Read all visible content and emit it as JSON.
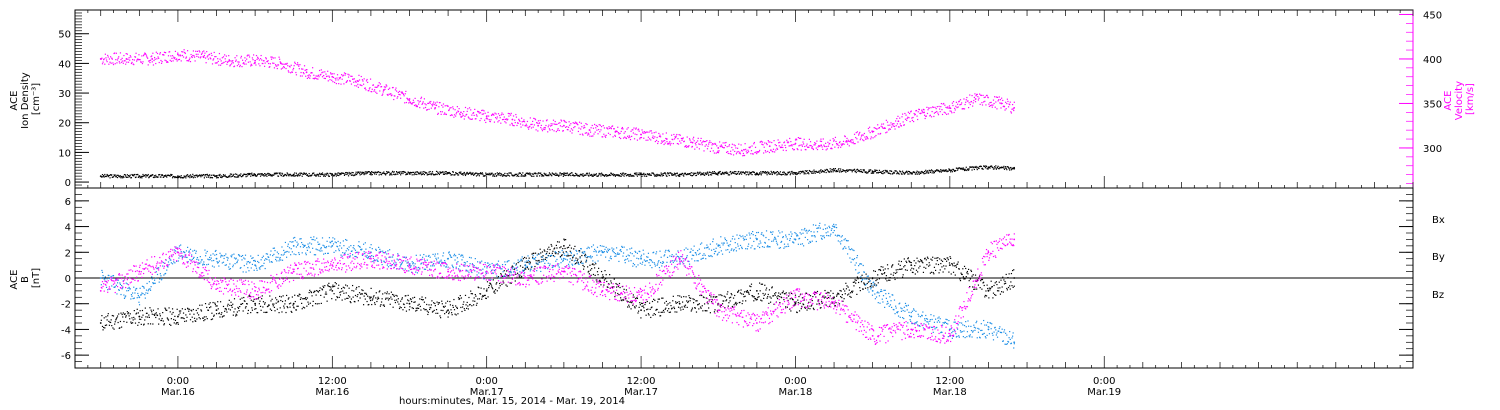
{
  "chart_data": [
    {
      "type": "scatter",
      "ylabel_left": [
        "ACE",
        "Ion Density",
        "[cm⁻³]"
      ],
      "ylabel_right": [
        "ACE",
        "Velocity",
        "[km/s]"
      ],
      "y_left_ticks": [
        0,
        10,
        20,
        30,
        40,
        50
      ],
      "y_left_lim": [
        -2,
        58
      ],
      "y_right_ticks": [
        300,
        350,
        400,
        450
      ],
      "y_right_lim": [
        255,
        455
      ],
      "colors": {
        "density": "#000000",
        "velocity": "#ff00ff"
      },
      "series": [
        {
          "name": "",
          "axis": "left",
          "color": "#000000",
          "x_hours": [
            -6,
            -3,
            0,
            3,
            6,
            9,
            12,
            15,
            18,
            21,
            24,
            27,
            30,
            33,
            36,
            39,
            42,
            45,
            48,
            51,
            54,
            57,
            60,
            63,
            65
          ],
          "y": [
            2,
            2,
            2,
            2,
            2.5,
            2.5,
            2.5,
            3,
            3,
            3,
            2.5,
            2.5,
            2.5,
            2.5,
            2.5,
            2.5,
            3,
            3,
            3,
            4,
            3.5,
            3,
            4,
            5,
            4.5
          ]
        },
        {
          "name": "",
          "axis": "right",
          "color": "#ff00ff",
          "x_hours": [
            -6,
            -4,
            -2,
            0,
            2,
            4,
            6,
            8,
            10,
            12,
            14,
            16,
            18,
            20,
            22,
            24,
            26,
            28,
            30,
            32,
            34,
            36,
            38,
            40,
            42,
            44,
            46,
            48,
            50,
            52,
            54,
            56,
            58,
            60,
            62,
            64,
            65
          ],
          "y": [
            400,
            400,
            400,
            405,
            402,
            398,
            398,
            395,
            385,
            380,
            375,
            365,
            355,
            345,
            340,
            335,
            332,
            325,
            325,
            320,
            318,
            315,
            310,
            306,
            300,
            298,
            302,
            305,
            303,
            307,
            318,
            330,
            340,
            345,
            355,
            350,
            345
          ]
        }
      ]
    },
    {
      "type": "scatter",
      "ylabel": [
        "ACE",
        "B",
        "[nT]"
      ],
      "y_ticks": [
        -6,
        -4,
        -2,
        0,
        2,
        4,
        6
      ],
      "ylim": [
        -7,
        7
      ],
      "legend_position": "right",
      "series": [
        {
          "name": "Bx",
          "color": "#000000",
          "x_hours": [
            -6,
            -3,
            0,
            3,
            6,
            9,
            12,
            15,
            18,
            21,
            24,
            27,
            30,
            33,
            36,
            39,
            42,
            45,
            48,
            51,
            54,
            57,
            60,
            63,
            65
          ],
          "y": [
            -3.5,
            -3,
            -3,
            -2.5,
            -2,
            -2,
            -1,
            -1.5,
            -2,
            -2.5,
            -1,
            1,
            2.5,
            0,
            -2.5,
            -2,
            -2,
            -1,
            -2,
            -1.5,
            0,
            1,
            1,
            -1,
            0
          ]
        },
        {
          "name": "By",
          "color": "#1e8fe6",
          "x_hours": [
            -6,
            -3,
            0,
            3,
            6,
            9,
            12,
            15,
            18,
            21,
            24,
            27,
            30,
            33,
            36,
            39,
            42,
            45,
            48,
            51,
            54,
            57,
            60,
            63,
            65
          ],
          "y": [
            0,
            -1.5,
            2,
            1.5,
            1,
            2.5,
            2.5,
            2,
            1,
            1.5,
            0.5,
            1,
            1.5,
            2,
            1.5,
            1.5,
            2.5,
            3,
            3,
            4,
            -1,
            -3,
            -4,
            -4,
            -5
          ]
        },
        {
          "name": "Bz",
          "color": "#ff00ff",
          "x_hours": [
            -6,
            -3,
            0,
            3,
            6,
            9,
            12,
            15,
            18,
            21,
            24,
            27,
            30,
            33,
            36,
            39,
            42,
            45,
            48,
            51,
            54,
            57,
            60,
            63,
            65
          ],
          "y": [
            -1,
            0.5,
            2,
            -0.5,
            -1,
            0.5,
            1,
            1.5,
            1,
            0.5,
            0.5,
            0,
            0.5,
            -1,
            -1.5,
            1.5,
            -2.5,
            -3.5,
            -1.5,
            -2,
            -4.5,
            -4,
            -4.5,
            2,
            3
          ]
        }
      ]
    }
  ],
  "x_axis": {
    "range_hours": [
      -8,
      96
    ],
    "ticks": [
      {
        "h": 0,
        "time": "0:00",
        "date": "Mar.16"
      },
      {
        "h": 12,
        "time": "12:00",
        "date": "Mar.16"
      },
      {
        "h": 24,
        "time": "0:00",
        "date": "Mar.17"
      },
      {
        "h": 36,
        "time": "12:00",
        "date": "Mar.17"
      },
      {
        "h": 48,
        "time": "0:00",
        "date": "Mar.18"
      },
      {
        "h": 60,
        "time": "12:00",
        "date": "Mar.18"
      },
      {
        "h": 72,
        "time": "0:00",
        "date": "Mar.19"
      }
    ],
    "label": "hours:minutes, Mar. 15, 2014 - Mar. 19, 2014"
  }
}
